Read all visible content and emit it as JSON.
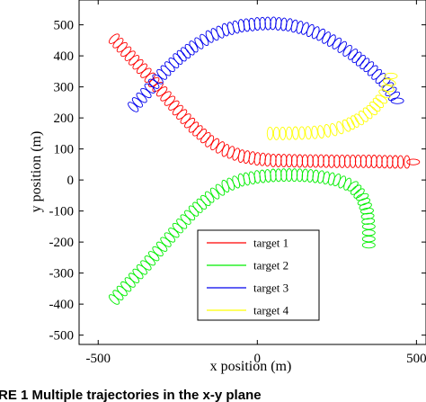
{
  "chart_data": {
    "type": "scatter",
    "title": "",
    "xlabel": "x position (m)",
    "ylabel": "y position (m)",
    "xlim": [
      -560,
      530
    ],
    "ylim": [
      -530,
      580
    ],
    "xticks": [
      -500,
      0,
      500
    ],
    "yticks": [
      500,
      400,
      300,
      200,
      100,
      0,
      -100,
      -200,
      -300,
      -400,
      -500
    ],
    "xtick_labels": [
      "-500",
      "0",
      "500"
    ],
    "ytick_labels": [
      "500",
      "400",
      "300",
      "200",
      "100",
      "0",
      "-100",
      "-200",
      "-300",
      "-400",
      "-500"
    ],
    "grid": false,
    "legend_position": "bottom-center",
    "marker": "ellipse",
    "series": [
      {
        "name": "target 1",
        "color": "#ff0000",
        "points": [
          [
            -450,
            455
          ],
          [
            -400,
            400
          ],
          [
            -350,
            345
          ],
          [
            -300,
            285
          ],
          [
            -250,
            225
          ],
          [
            -200,
            170
          ],
          [
            -150,
            125
          ],
          [
            -100,
            95
          ],
          [
            -50,
            77
          ],
          [
            0,
            68
          ],
          [
            50,
            63
          ],
          [
            100,
            62
          ],
          [
            150,
            61
          ],
          [
            200,
            61
          ],
          [
            250,
            60
          ],
          [
            300,
            60
          ],
          [
            350,
            60
          ],
          [
            400,
            59
          ],
          [
            450,
            58
          ],
          [
            490,
            58
          ]
        ]
      },
      {
        "name": "target 2",
        "color": "#00ee00",
        "points": [
          [
            -450,
            -385
          ],
          [
            -400,
            -330
          ],
          [
            -350,
            -275
          ],
          [
            -300,
            -215
          ],
          [
            -250,
            -155
          ],
          [
            -200,
            -100
          ],
          [
            -150,
            -55
          ],
          [
            -100,
            -20
          ],
          [
            -50,
            0
          ],
          [
            0,
            10
          ],
          [
            50,
            15
          ],
          [
            100,
            16
          ],
          [
            150,
            15
          ],
          [
            200,
            10
          ],
          [
            250,
            0
          ],
          [
            300,
            -20
          ],
          [
            330,
            -55
          ],
          [
            345,
            -100
          ],
          [
            350,
            -150
          ],
          [
            350,
            -210
          ]
        ]
      },
      {
        "name": "target 3",
        "color": "#0000ee",
        "points": [
          [
            -390,
            235
          ],
          [
            -350,
            280
          ],
          [
            -300,
            340
          ],
          [
            -250,
            390
          ],
          [
            -200,
            430
          ],
          [
            -150,
            462
          ],
          [
            -100,
            484
          ],
          [
            -50,
            497
          ],
          [
            0,
            503
          ],
          [
            50,
            505
          ],
          [
            100,
            500
          ],
          [
            150,
            488
          ],
          [
            200,
            468
          ],
          [
            250,
            440
          ],
          [
            300,
            405
          ],
          [
            350,
            365
          ],
          [
            400,
            315
          ],
          [
            440,
            255
          ]
        ]
      },
      {
        "name": "target 4",
        "color": "#ffff00",
        "points": [
          [
            40,
            150
          ],
          [
            80,
            150
          ],
          [
            120,
            151
          ],
          [
            160,
            152
          ],
          [
            200,
            155
          ],
          [
            240,
            162
          ],
          [
            280,
            175
          ],
          [
            320,
            195
          ],
          [
            360,
            225
          ],
          [
            390,
            260
          ],
          [
            410,
            295
          ],
          [
            420,
            335
          ]
        ]
      }
    ]
  },
  "caption": {
    "text": "RE 1   Multiple trajectories in the x-y plane"
  }
}
